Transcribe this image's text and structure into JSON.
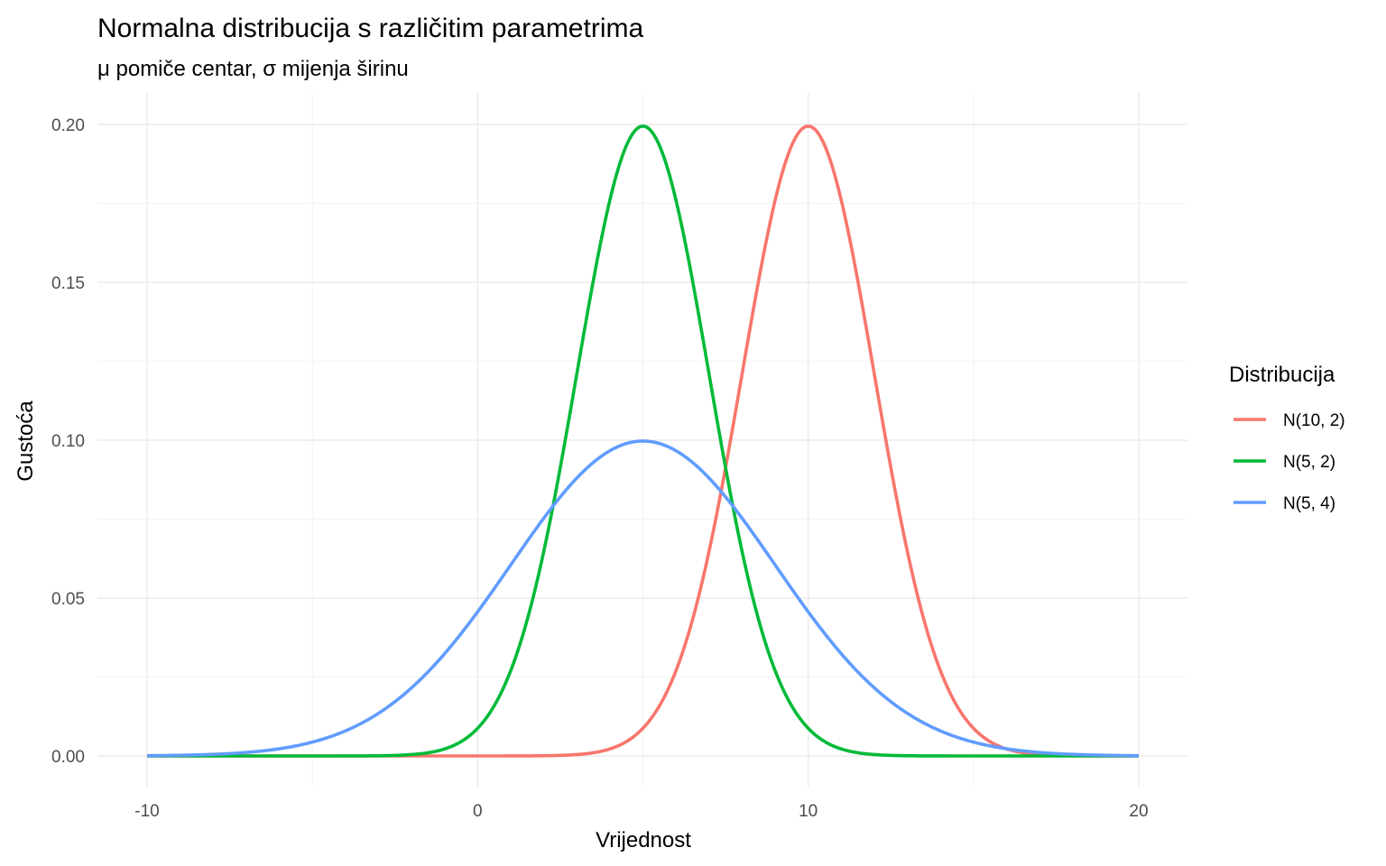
{
  "chart_data": {
    "type": "line",
    "title": "Normalna distribucija s različitim parametrima",
    "subtitle": "μ pomiče centar, σ mijenja širinu",
    "xlabel": "Vrijednost",
    "ylabel": "Gustoća",
    "xlim": [
      -10,
      20
    ],
    "ylim": [
      0,
      0.2
    ],
    "x_ticks": [
      "-10",
      "0",
      "10",
      "20"
    ],
    "x_tick_values": [
      -10,
      0,
      10,
      20
    ],
    "y_ticks": [
      "0.00",
      "0.05",
      "0.10",
      "0.15",
      "0.20"
    ],
    "y_tick_values": [
      0,
      0.05,
      0.1,
      0.15,
      0.2
    ],
    "grid": true,
    "legend": {
      "title": "Distribucija",
      "placement": "right"
    },
    "series": [
      {
        "name": "N(10, 2)",
        "mean": 10,
        "sd": 2,
        "color": "#F8766D",
        "x_range": [
          -10,
          20
        ]
      },
      {
        "name": "N(5, 2)",
        "mean": 5,
        "sd": 2,
        "color": "#00BA38",
        "x_range": [
          -10,
          20
        ]
      },
      {
        "name": "N(5, 4)",
        "mean": 5,
        "sd": 4,
        "color": "#619CFF",
        "x_range": [
          -10,
          20
        ]
      }
    ]
  }
}
